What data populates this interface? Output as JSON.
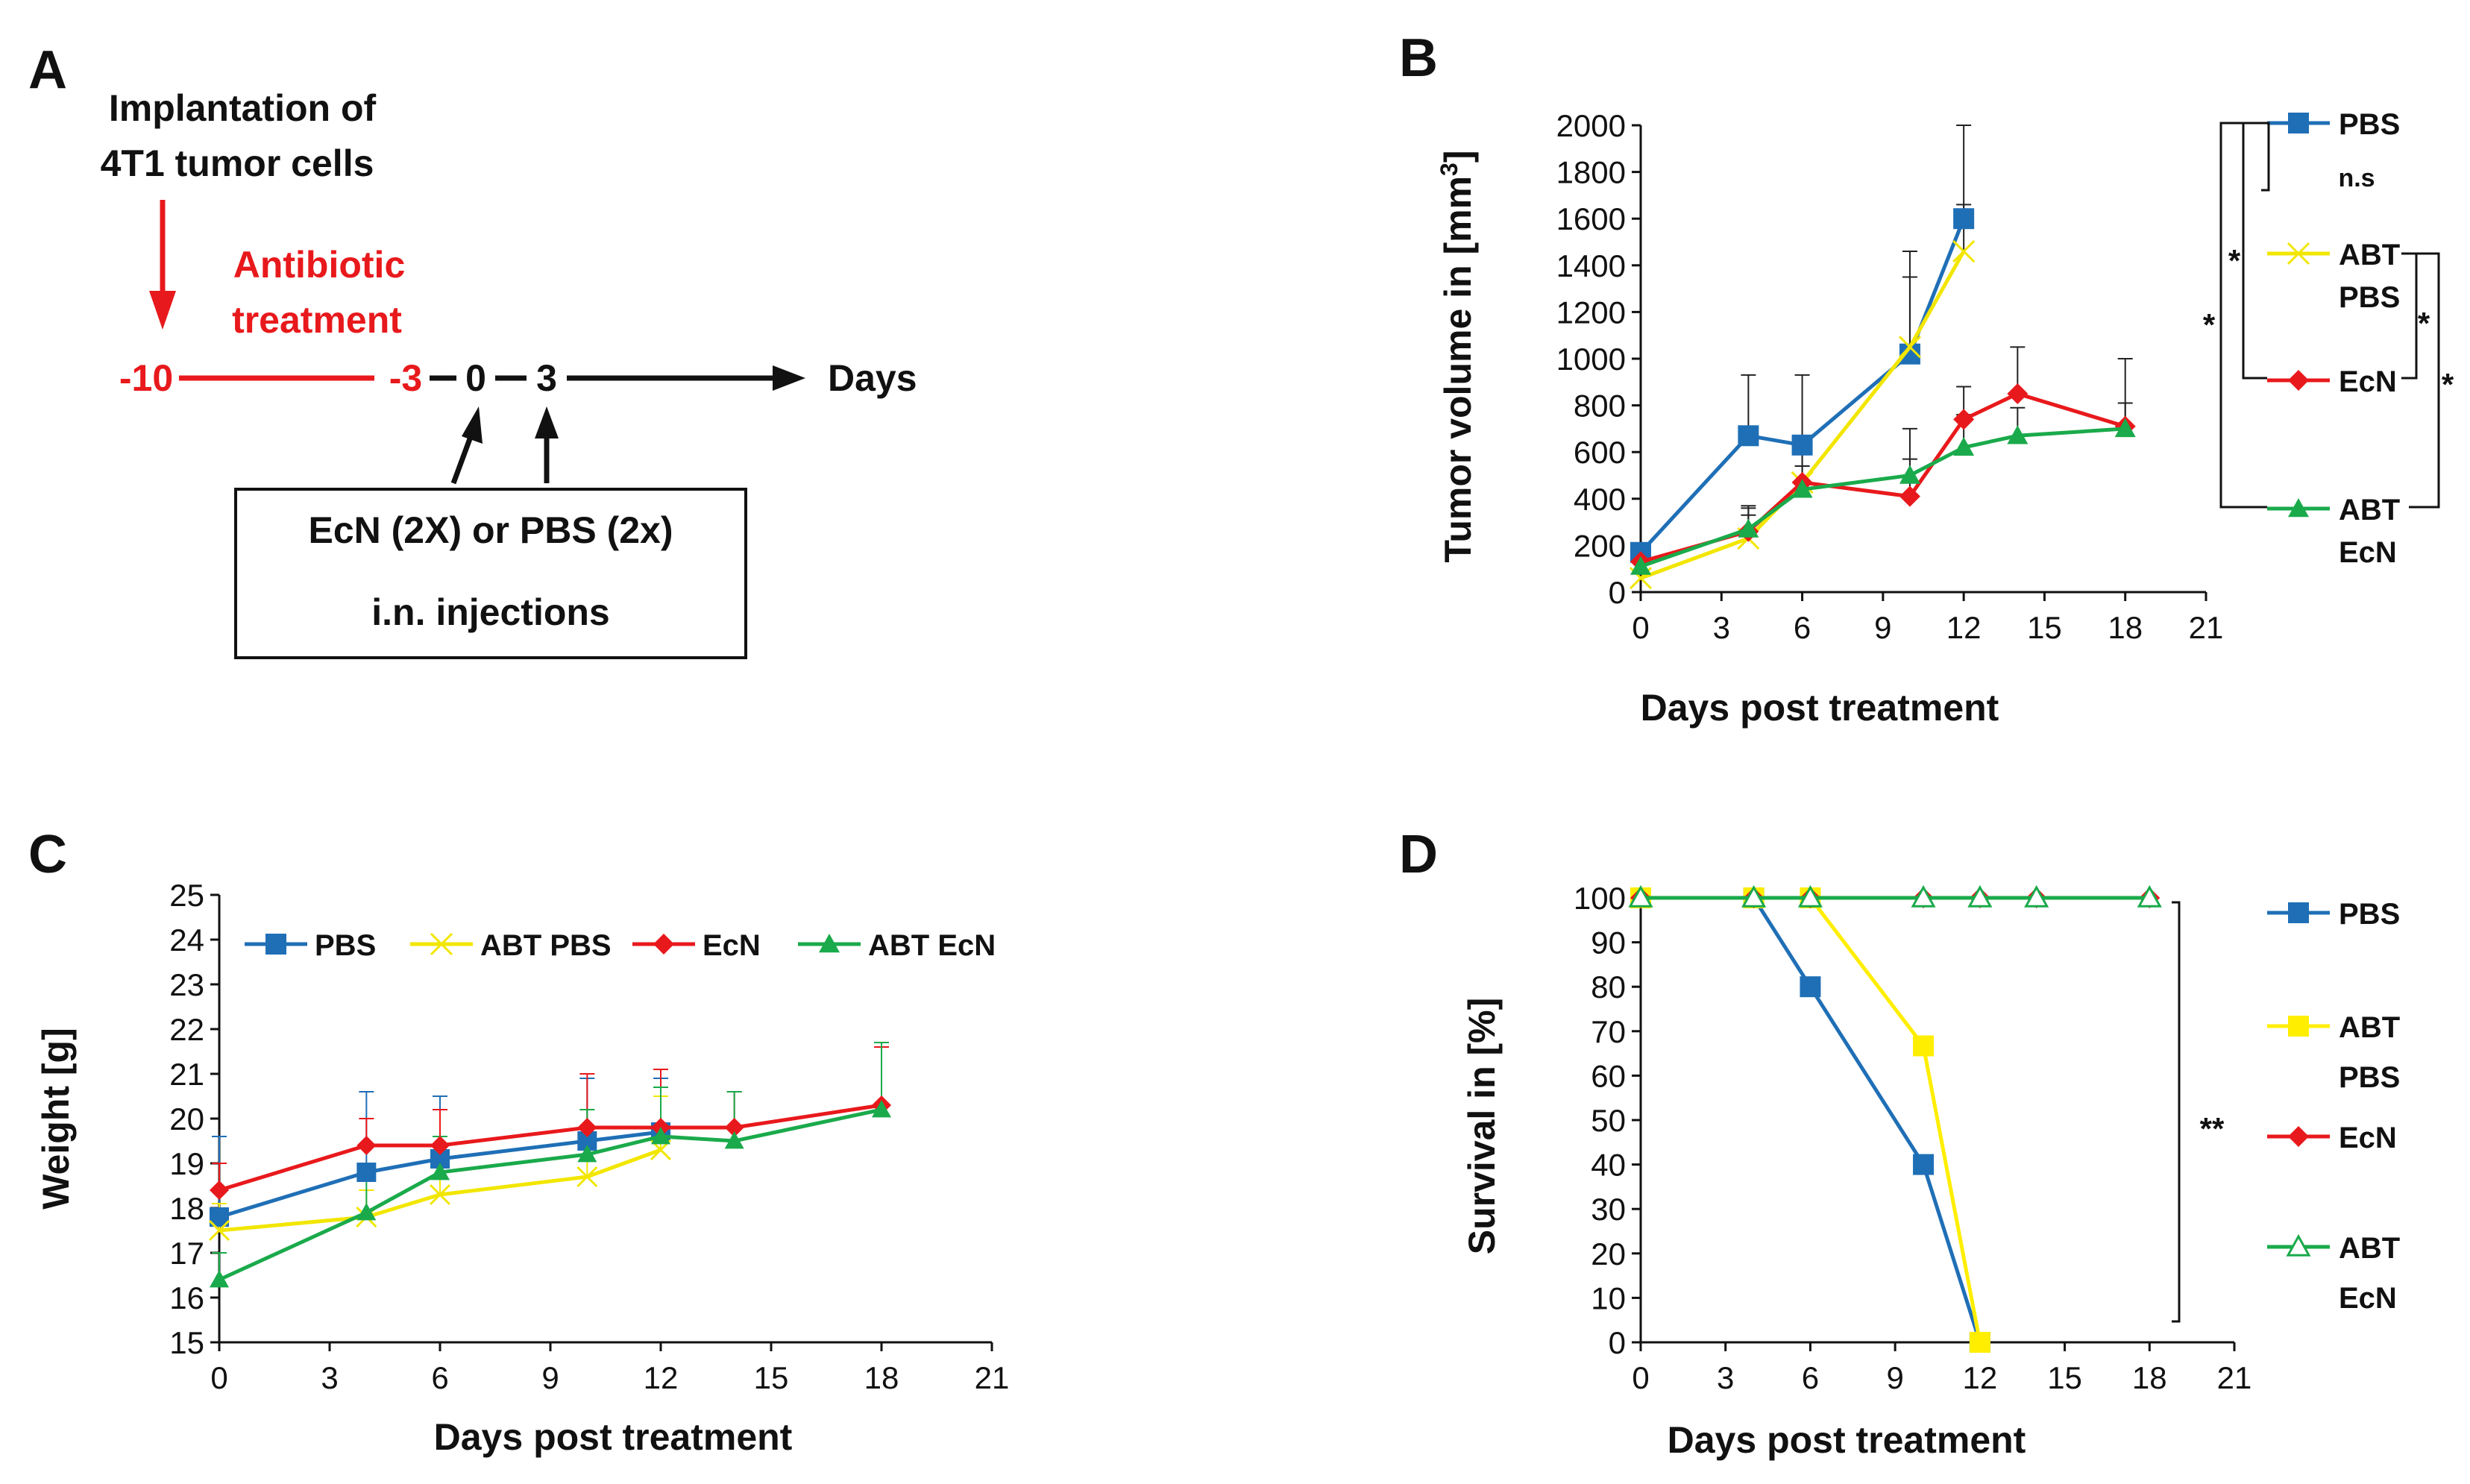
{
  "panels": {
    "A": "A",
    "B": "B",
    "C": "C",
    "D": "D"
  },
  "timeline": {
    "implant_line1": "Implantation of",
    "implant_line2": "4T1 tumor cells",
    "abx_line1": "Antibiotic",
    "abx_line2": "treatment",
    "day_m10": "-10",
    "day_m3": "-3",
    "day_0": "0",
    "day_3": "3",
    "axis_label": "Days",
    "box_line1": "EcN (2X) or PBS (2x)",
    "box_line2": "i.n. injections",
    "red_color": "#e8191c"
  },
  "colors": {
    "PBS": "#1f6fb6",
    "ABT PBS": "#f2e600",
    "EcN": "#e8191c",
    "ABT EcN": "#1aaa4b",
    "D_ABT_PBS": "#ffee00"
  },
  "chart_data": [
    {
      "panel": "B",
      "type": "line",
      "title": "",
      "xlabel": "Days post treatment",
      "ylabel": "Tumor volume in [mm³]",
      "xlim": [
        0,
        21
      ],
      "ylim": [
        0,
        2000
      ],
      "xticks": [
        "0",
        "3",
        "6",
        "9",
        "12",
        "15",
        "18",
        "21"
      ],
      "yticks": [
        "0",
        "200",
        "400",
        "600",
        "800",
        "1000",
        "1200",
        "1400",
        "1600",
        "1800",
        "2000"
      ],
      "series": [
        {
          "name": "PBS",
          "x": [
            0,
            4,
            6,
            10,
            12
          ],
          "values": [
            170,
            670,
            630,
            1020,
            1600
          ],
          "err": [
            0,
            260,
            300,
            440,
            400
          ],
          "marker": "square"
        },
        {
          "name": "ABT PBS",
          "x": [
            0,
            4,
            6,
            10,
            12
          ],
          "values": [
            60,
            230,
            470,
            1050,
            1460
          ],
          "err": [
            0,
            130,
            200,
            300,
            200
          ],
          "marker": "x"
        },
        {
          "name": "EcN",
          "x": [
            0,
            4,
            6,
            10,
            12,
            14,
            18
          ],
          "values": [
            130,
            260,
            470,
            410,
            740,
            850,
            710
          ],
          "err": [
            0,
            70,
            200,
            160,
            140,
            200,
            100
          ],
          "marker": "diamond"
        },
        {
          "name": "ABT EcN",
          "x": [
            0,
            4,
            6,
            10,
            12,
            14,
            18
          ],
          "values": [
            110,
            270,
            440,
            500,
            620,
            670,
            700
          ],
          "err": [
            0,
            100,
            100,
            200,
            140,
            120,
            300
          ],
          "marker": "triangle"
        }
      ],
      "legend": [
        {
          "line1": "PBS",
          "line2": ""
        },
        {
          "line1": "ABT",
          "line2": "PBS"
        },
        {
          "line1": "EcN",
          "line2": ""
        },
        {
          "line1": "ABT",
          "line2": "EcN"
        }
      ],
      "significance": {
        "ns": "n.s",
        "star": "*"
      }
    },
    {
      "panel": "C",
      "type": "line",
      "title": "",
      "xlabel": "Days post treatment",
      "ylabel": "Weight [g]",
      "xlim": [
        0,
        21
      ],
      "ylim": [
        15,
        25
      ],
      "xticks": [
        "0",
        "3",
        "6",
        "9",
        "12",
        "15",
        "18",
        "21"
      ],
      "yticks": [
        "15",
        "16",
        "17",
        "18",
        "19",
        "20",
        "21",
        "22",
        "23",
        "24",
        "25"
      ],
      "series": [
        {
          "name": "PBS",
          "x": [
            0,
            4,
            6,
            10,
            12
          ],
          "values": [
            17.8,
            18.8,
            19.1,
            19.5,
            19.7
          ],
          "err": [
            1.8,
            1.8,
            1.4,
            1.4,
            1.2
          ],
          "marker": "square"
        },
        {
          "name": "ABT PBS",
          "x": [
            0,
            4,
            6,
            10,
            12
          ],
          "values": [
            17.5,
            17.8,
            18.3,
            18.7,
            19.3
          ],
          "err": [
            0.6,
            0.6,
            0.8,
            1.0,
            1.2
          ],
          "marker": "x"
        },
        {
          "name": "EcN",
          "x": [
            0,
            4,
            6,
            10,
            12,
            14,
            18
          ],
          "values": [
            18.4,
            19.4,
            19.4,
            19.8,
            19.8,
            19.8,
            20.3
          ],
          "err": [
            0.6,
            0.6,
            0.8,
            1.2,
            1.3,
            0.8,
            1.3
          ],
          "marker": "diamond"
        },
        {
          "name": "ABT EcN",
          "x": [
            0,
            4,
            6,
            10,
            12,
            14,
            18
          ],
          "values": [
            16.4,
            17.9,
            18.8,
            19.2,
            19.6,
            19.5,
            20.2
          ],
          "err": [
            0.6,
            0.7,
            0.8,
            1.0,
            1.1,
            1.1,
            1.5
          ],
          "marker": "triangle"
        }
      ],
      "legend": [
        "PBS",
        "ABT PBS",
        "EcN",
        "ABT EcN"
      ]
    },
    {
      "panel": "D",
      "type": "line",
      "title": "",
      "xlabel": "Days post treatment",
      "ylabel": "Survival in [%]",
      "xlim": [
        0,
        21
      ],
      "ylim": [
        0,
        100
      ],
      "xticks": [
        "0",
        "3",
        "6",
        "9",
        "12",
        "15",
        "18",
        "21"
      ],
      "yticks": [
        "0",
        "10",
        "20",
        "30",
        "40",
        "50",
        "60",
        "70",
        "80",
        "90",
        "100"
      ],
      "series": [
        {
          "name": "PBS",
          "x": [
            0,
            4,
            6,
            10,
            12
          ],
          "values": [
            100,
            100,
            80,
            40,
            0
          ],
          "marker": "square"
        },
        {
          "name": "ABT PBS",
          "x": [
            0,
            4,
            6,
            10,
            12
          ],
          "values": [
            100,
            100,
            100,
            66.7,
            0
          ],
          "marker": "square"
        },
        {
          "name": "EcN",
          "x": [
            0,
            4,
            6,
            10,
            12,
            14,
            18
          ],
          "values": [
            100,
            100,
            100,
            100,
            100,
            100,
            100
          ],
          "marker": "diamond"
        },
        {
          "name": "ABT EcN",
          "x": [
            0,
            4,
            6,
            10,
            12,
            14,
            18
          ],
          "values": [
            100,
            100,
            100,
            100,
            100,
            100,
            100
          ],
          "marker": "triangle-open"
        }
      ],
      "legend": [
        {
          "line1": "PBS",
          "line2": ""
        },
        {
          "line1": "ABT",
          "line2": "PBS"
        },
        {
          "line1": "EcN",
          "line2": ""
        },
        {
          "line1": "ABT",
          "line2": "EcN"
        }
      ],
      "significance": {
        "label": "**"
      }
    }
  ]
}
